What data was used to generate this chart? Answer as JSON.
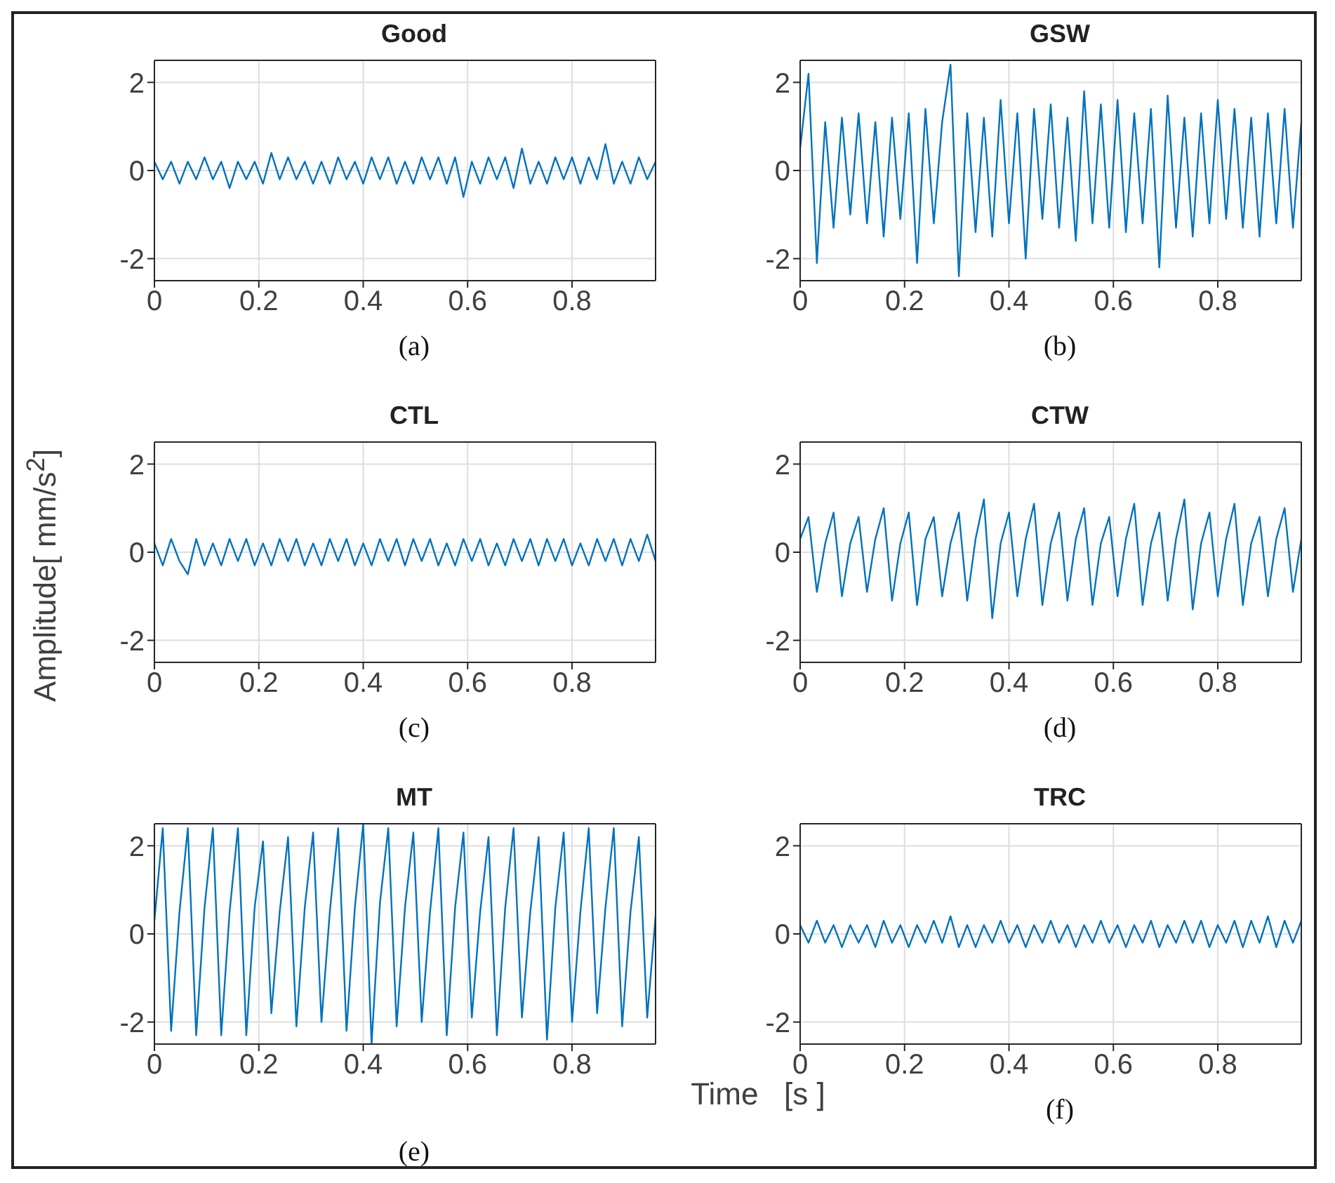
{
  "chart_data": [
    {
      "type": "line",
      "title": "Good",
      "annotations": [
        "(a)"
      ],
      "color": "#0072bd",
      "xlim": [
        0,
        0.96
      ],
      "ylim": [
        -2.5,
        2.5
      ],
      "xticks": [
        0,
        0.2,
        0.4,
        0.6,
        0.8
      ],
      "yticks": [
        -2,
        0,
        2
      ],
      "grid": true,
      "x": [
        0,
        0.016,
        0.032,
        0.048,
        0.064,
        0.08,
        0.096,
        0.112,
        0.128,
        0.144,
        0.16,
        0.176,
        0.192,
        0.208,
        0.224,
        0.24,
        0.256,
        0.272,
        0.288,
        0.304,
        0.32,
        0.336,
        0.352,
        0.368,
        0.384,
        0.4,
        0.416,
        0.432,
        0.448,
        0.464,
        0.48,
        0.496,
        0.512,
        0.528,
        0.544,
        0.56,
        0.576,
        0.592,
        0.608,
        0.624,
        0.64,
        0.656,
        0.672,
        0.688,
        0.704,
        0.72,
        0.736,
        0.752,
        0.768,
        0.784,
        0.8,
        0.816,
        0.832,
        0.848,
        0.864,
        0.88,
        0.896,
        0.912,
        0.928,
        0.944,
        0.96
      ],
      "values": [
        0.2,
        -0.2,
        0.2,
        -0.3,
        0.2,
        -0.2,
        0.3,
        -0.2,
        0.2,
        -0.4,
        0.2,
        -0.2,
        0.2,
        -0.3,
        0.4,
        -0.2,
        0.3,
        -0.2,
        0.2,
        -0.3,
        0.2,
        -0.3,
        0.3,
        -0.2,
        0.2,
        -0.3,
        0.3,
        -0.2,
        0.3,
        -0.3,
        0.2,
        -0.3,
        0.3,
        -0.2,
        0.3,
        -0.3,
        0.3,
        -0.6,
        0.2,
        -0.3,
        0.3,
        -0.2,
        0.3,
        -0.4,
        0.5,
        -0.3,
        0.2,
        -0.3,
        0.3,
        -0.2,
        0.3,
        -0.3,
        0.3,
        -0.2,
        0.6,
        -0.3,
        0.2,
        -0.3,
        0.3,
        -0.2,
        0.2
      ]
    },
    {
      "type": "line",
      "title": "GSW",
      "annotations": [
        "(b)"
      ],
      "color": "#0072bd",
      "xlim": [
        0,
        0.96
      ],
      "ylim": [
        -2.5,
        2.5
      ],
      "xticks": [
        0,
        0.2,
        0.4,
        0.6,
        0.8
      ],
      "yticks": [
        -2,
        0,
        2
      ],
      "grid": true,
      "x": [
        0,
        0.016,
        0.032,
        0.048,
        0.064,
        0.08,
        0.096,
        0.112,
        0.128,
        0.144,
        0.16,
        0.176,
        0.192,
        0.208,
        0.224,
        0.24,
        0.256,
        0.272,
        0.288,
        0.304,
        0.32,
        0.336,
        0.352,
        0.368,
        0.384,
        0.4,
        0.416,
        0.432,
        0.448,
        0.464,
        0.48,
        0.496,
        0.512,
        0.528,
        0.544,
        0.56,
        0.576,
        0.592,
        0.608,
        0.624,
        0.64,
        0.656,
        0.672,
        0.688,
        0.704,
        0.72,
        0.736,
        0.752,
        0.768,
        0.784,
        0.8,
        0.816,
        0.832,
        0.848,
        0.864,
        0.88,
        0.896,
        0.912,
        0.928,
        0.944,
        0.96
      ],
      "values": [
        0.5,
        2.2,
        -2.1,
        1.1,
        -1.3,
        1.2,
        -1.0,
        1.3,
        -1.2,
        1.1,
        -1.5,
        1.2,
        -1.1,
        1.3,
        -2.1,
        1.4,
        -1.2,
        1.1,
        2.4,
        -2.4,
        1.3,
        -1.4,
        1.2,
        -1.5,
        1.6,
        -1.2,
        1.3,
        -2.0,
        1.4,
        -1.1,
        1.5,
        -1.3,
        1.2,
        -1.6,
        1.8,
        -1.2,
        1.5,
        -1.3,
        1.6,
        -1.4,
        1.3,
        -1.2,
        1.4,
        -2.2,
        1.7,
        -1.3,
        1.2,
        -1.5,
        1.3,
        -1.2,
        1.6,
        -1.1,
        1.4,
        -1.3,
        1.2,
        -1.5,
        1.3,
        -1.2,
        1.4,
        -1.3,
        1.1
      ]
    },
    {
      "type": "line",
      "title": "CTL",
      "annotations": [
        "(c)"
      ],
      "ylabel": "Amplitude[ mm/s$^{2}$]",
      "color": "#0072bd",
      "xlim": [
        0,
        0.96
      ],
      "ylim": [
        -2.5,
        2.5
      ],
      "xticks": [
        0,
        0.2,
        0.4,
        0.6,
        0.8
      ],
      "yticks": [
        -2,
        0,
        2
      ],
      "grid": true,
      "x": [
        0,
        0.016,
        0.032,
        0.048,
        0.064,
        0.08,
        0.096,
        0.112,
        0.128,
        0.144,
        0.16,
        0.176,
        0.192,
        0.208,
        0.224,
        0.24,
        0.256,
        0.272,
        0.288,
        0.304,
        0.32,
        0.336,
        0.352,
        0.368,
        0.384,
        0.4,
        0.416,
        0.432,
        0.448,
        0.464,
        0.48,
        0.496,
        0.512,
        0.528,
        0.544,
        0.56,
        0.576,
        0.592,
        0.608,
        0.624,
        0.64,
        0.656,
        0.672,
        0.688,
        0.704,
        0.72,
        0.736,
        0.752,
        0.768,
        0.784,
        0.8,
        0.816,
        0.832,
        0.848,
        0.864,
        0.88,
        0.896,
        0.912,
        0.928,
        0.944,
        0.96
      ],
      "values": [
        0.2,
        -0.3,
        0.3,
        -0.2,
        -0.5,
        0.3,
        -0.3,
        0.2,
        -0.3,
        0.3,
        -0.2,
        0.3,
        -0.3,
        0.2,
        -0.3,
        0.3,
        -0.2,
        0.3,
        -0.3,
        0.2,
        -0.3,
        0.3,
        -0.2,
        0.3,
        -0.3,
        0.2,
        -0.3,
        0.3,
        -0.2,
        0.3,
        -0.3,
        0.3,
        -0.2,
        0.3,
        -0.3,
        0.2,
        -0.3,
        0.3,
        -0.2,
        0.3,
        -0.3,
        0.2,
        -0.3,
        0.3,
        -0.2,
        0.3,
        -0.3,
        0.3,
        -0.2,
        0.3,
        -0.3,
        0.2,
        -0.3,
        0.3,
        -0.2,
        0.3,
        -0.3,
        0.3,
        -0.2,
        0.4,
        -0.2
      ]
    },
    {
      "type": "line",
      "title": "CTW",
      "annotations": [
        "(d)"
      ],
      "color": "#0072bd",
      "xlim": [
        0,
        0.96
      ],
      "ylim": [
        -2.5,
        2.5
      ],
      "xticks": [
        0,
        0.2,
        0.4,
        0.6,
        0.8
      ],
      "yticks": [
        -2,
        0,
        2
      ],
      "grid": true,
      "x": [
        0,
        0.016,
        0.032,
        0.048,
        0.064,
        0.08,
        0.096,
        0.112,
        0.128,
        0.144,
        0.16,
        0.176,
        0.192,
        0.208,
        0.224,
        0.24,
        0.256,
        0.272,
        0.288,
        0.304,
        0.32,
        0.336,
        0.352,
        0.368,
        0.384,
        0.4,
        0.416,
        0.432,
        0.448,
        0.464,
        0.48,
        0.496,
        0.512,
        0.528,
        0.544,
        0.56,
        0.576,
        0.592,
        0.608,
        0.624,
        0.64,
        0.656,
        0.672,
        0.688,
        0.704,
        0.72,
        0.736,
        0.752,
        0.768,
        0.784,
        0.8,
        0.816,
        0.832,
        0.848,
        0.864,
        0.88,
        0.896,
        0.912,
        0.928,
        0.944,
        0.96
      ],
      "values": [
        0.3,
        0.8,
        -0.9,
        0.2,
        0.9,
        -1.0,
        0.2,
        0.8,
        -0.9,
        0.3,
        1.0,
        -1.1,
        0.2,
        0.9,
        -1.2,
        0.3,
        0.8,
        -1.0,
        0.2,
        0.9,
        -1.1,
        0.3,
        1.2,
        -1.5,
        0.2,
        0.9,
        -1.0,
        0.3,
        1.1,
        -1.2,
        0.2,
        0.9,
        -1.1,
        0.3,
        1.0,
        -1.2,
        0.2,
        0.8,
        -1.0,
        0.3,
        1.1,
        -1.2,
        0.2,
        0.9,
        -1.1,
        0.3,
        1.2,
        -1.3,
        0.2,
        0.9,
        -1.0,
        0.3,
        1.1,
        -1.2,
        0.2,
        0.8,
        -1.0,
        0.3,
        1.0,
        -0.9,
        0.3
      ]
    },
    {
      "type": "line",
      "title": "MT",
      "annotations": [
        "(e)"
      ],
      "xlabel": "Time   [s ]",
      "color": "#0072bd",
      "xlim": [
        0,
        0.96
      ],
      "ylim": [
        -2.5,
        2.5
      ],
      "xticks": [
        0,
        0.2,
        0.4,
        0.6,
        0.8
      ],
      "yticks": [
        -2,
        0,
        2
      ],
      "grid": true,
      "x": [
        0,
        0.016,
        0.032,
        0.048,
        0.064,
        0.08,
        0.096,
        0.112,
        0.128,
        0.144,
        0.16,
        0.176,
        0.192,
        0.208,
        0.224,
        0.24,
        0.256,
        0.272,
        0.288,
        0.304,
        0.32,
        0.336,
        0.352,
        0.368,
        0.384,
        0.4,
        0.416,
        0.432,
        0.448,
        0.464,
        0.48,
        0.496,
        0.512,
        0.528,
        0.544,
        0.56,
        0.576,
        0.592,
        0.608,
        0.624,
        0.64,
        0.656,
        0.672,
        0.688,
        0.704,
        0.72,
        0.736,
        0.752,
        0.768,
        0.784,
        0.8,
        0.816,
        0.832,
        0.848,
        0.864,
        0.88,
        0.896,
        0.912,
        0.928,
        0.944,
        0.96
      ],
      "values": [
        0.3,
        2.4,
        -2.2,
        0.5,
        2.4,
        -2.3,
        0.6,
        2.4,
        -2.3,
        0.5,
        2.4,
        -2.3,
        0.6,
        2.1,
        -1.8,
        0.5,
        2.2,
        -2.1,
        0.6,
        2.3,
        -2.0,
        0.5,
        2.4,
        -2.2,
        0.6,
        2.5,
        -2.5,
        0.7,
        2.4,
        -2.1,
        0.6,
        2.3,
        -2.0,
        0.5,
        2.4,
        -2.3,
        0.6,
        2.3,
        -1.9,
        0.5,
        2.2,
        -2.3,
        0.6,
        2.4,
        -1.9,
        0.5,
        2.2,
        -2.4,
        0.6,
        2.3,
        -2.0,
        0.5,
        2.4,
        -1.8,
        0.6,
        2.4,
        -2.1,
        0.5,
        2.2,
        -1.9,
        0.4
      ]
    },
    {
      "type": "line",
      "title": "TRC",
      "annotations": [
        "(f)"
      ],
      "color": "#0072bd",
      "xlim": [
        0,
        0.96
      ],
      "ylim": [
        -2.5,
        2.5
      ],
      "xticks": [
        0,
        0.2,
        0.4,
        0.6,
        0.8
      ],
      "yticks": [
        -2,
        0,
        2
      ],
      "grid": true,
      "x": [
        0,
        0.016,
        0.032,
        0.048,
        0.064,
        0.08,
        0.096,
        0.112,
        0.128,
        0.144,
        0.16,
        0.176,
        0.192,
        0.208,
        0.224,
        0.24,
        0.256,
        0.272,
        0.288,
        0.304,
        0.32,
        0.336,
        0.352,
        0.368,
        0.384,
        0.4,
        0.416,
        0.432,
        0.448,
        0.464,
        0.48,
        0.496,
        0.512,
        0.528,
        0.544,
        0.56,
        0.576,
        0.592,
        0.608,
        0.624,
        0.64,
        0.656,
        0.672,
        0.688,
        0.704,
        0.72,
        0.736,
        0.752,
        0.768,
        0.784,
        0.8,
        0.816,
        0.832,
        0.848,
        0.864,
        0.88,
        0.896,
        0.912,
        0.928,
        0.944,
        0.96
      ],
      "values": [
        0.2,
        -0.2,
        0.3,
        -0.2,
        0.2,
        -0.3,
        0.2,
        -0.2,
        0.2,
        -0.3,
        0.3,
        -0.2,
        0.2,
        -0.3,
        0.2,
        -0.2,
        0.3,
        -0.2,
        0.4,
        -0.3,
        0.2,
        -0.3,
        0.2,
        -0.2,
        0.3,
        -0.2,
        0.2,
        -0.3,
        0.2,
        -0.2,
        0.3,
        -0.2,
        0.2,
        -0.3,
        0.2,
        -0.2,
        0.3,
        -0.2,
        0.2,
        -0.3,
        0.2,
        -0.2,
        0.3,
        -0.3,
        0.2,
        -0.2,
        0.3,
        -0.2,
        0.3,
        -0.3,
        0.2,
        -0.2,
        0.3,
        -0.3,
        0.3,
        -0.2,
        0.4,
        -0.3,
        0.3,
        -0.2,
        0.3
      ]
    }
  ]
}
